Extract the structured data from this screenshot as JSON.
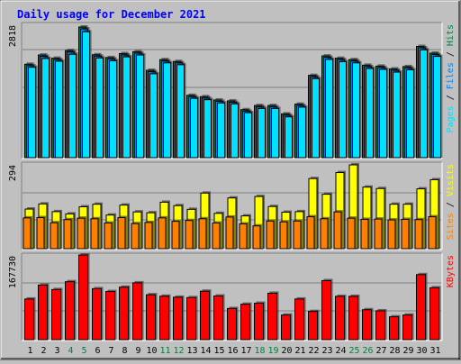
{
  "title": "Daily usage for December 2021",
  "colors": {
    "background": "#c0c0c0",
    "title": "#0000ff",
    "hits": "#008040",
    "files": "#0080ff",
    "pages": "#00e0ff",
    "visits": "#ffff00",
    "sites": "#ff8000",
    "kbytes": "#ff0000",
    "weekend_label": "#008040",
    "weekday_label": "#000000"
  },
  "chart_data": {
    "type": "bar",
    "title": "Daily usage for December 2021",
    "categories": [
      "1",
      "2",
      "3",
      "4",
      "5",
      "6",
      "7",
      "8",
      "9",
      "10",
      "11",
      "12",
      "13",
      "14",
      "15",
      "16",
      "17",
      "18",
      "19",
      "20",
      "21",
      "22",
      "23",
      "24",
      "25",
      "26",
      "27",
      "28",
      "29",
      "30",
      "31"
    ],
    "weekend_days": [
      "4",
      "5",
      "11",
      "12",
      "18",
      "19",
      "25",
      "26"
    ],
    "panels": [
      {
        "name": "pages-files-hits",
        "ymax_label": "2818",
        "ymax": 2818,
        "legend": [
          {
            "text": "Pages",
            "color": "#00e0ff"
          },
          {
            "text": " / ",
            "color": "#000000"
          },
          {
            "text": "Files",
            "color": "#0080ff"
          },
          {
            "text": " / ",
            "color": "#000000"
          },
          {
            "text": "Hits",
            "color": "#008040"
          }
        ],
        "series": [
          {
            "name": "Hits",
            "color": "#008040",
            "values": [
              2015,
              2215,
              2145,
              2310,
              2818,
              2220,
              2160,
              2245,
              2285,
              1885,
              2115,
              2075,
              1345,
              1315,
              1245,
              1225,
              1035,
              1125,
              1125,
              945,
              1155,
              1775,
              2195,
              2145,
              2115,
              1995,
              1975,
              1915,
              1965,
              2400,
              2255
            ]
          },
          {
            "name": "Files",
            "color": "#0080ff",
            "values": [
              1985,
              2185,
              2115,
              2280,
              2778,
              2190,
              2130,
              2215,
              2255,
              1855,
              2085,
              2045,
              1315,
              1285,
              1215,
              1195,
              1005,
              1095,
              1095,
              915,
              1125,
              1745,
              2165,
              2115,
              2085,
              1965,
              1945,
              1885,
              1935,
              2370,
              2225
            ]
          },
          {
            "name": "Pages",
            "color": "#00e0ff",
            "values": [
              1950,
              2140,
              2080,
              2230,
              2715,
              2150,
              2090,
              2175,
              2215,
              1810,
              2045,
              2005,
              1280,
              1250,
              1180,
              1160,
              970,
              1060,
              1060,
              880,
              1090,
              1705,
              2120,
              2070,
              2045,
              1925,
              1905,
              1845,
              1895,
              2325,
              2185
            ]
          }
        ]
      },
      {
        "name": "visits-sites",
        "ymax_label": "294",
        "ymax": 294,
        "legend": [
          {
            "text": "Sites",
            "color": "#ff8000"
          },
          {
            "text": " / ",
            "color": "#000000"
          },
          {
            "text": "Visits",
            "color": "#ffff00"
          }
        ],
        "series": [
          {
            "name": "Visits",
            "color": "#ffff00",
            "values": [
              139,
              157,
              130,
              122,
              147,
              156,
              118,
              153,
              129,
              126,
              163,
              151,
              138,
              195,
              124,
              178,
              115,
              183,
              148,
              128,
              130,
              246,
              191,
              267,
              294,
              216,
              211,
              156,
              156,
              210,
              242
            ]
          },
          {
            "name": "Sites",
            "color": "#ff8000",
            "values": [
              108,
              109,
              91,
              102,
              107,
              105,
              90,
              109,
              88,
              92,
              108,
              96,
              99,
              105,
              90,
              111,
              87,
              80,
              97,
              94,
              97,
              112,
              105,
              129,
              107,
              103,
              104,
              101,
              103,
              102,
              112
            ]
          }
        ]
      },
      {
        "name": "kbytes",
        "ymax_label": "167730",
        "ymax": 167730,
        "legend": [
          {
            "text": "KBytes",
            "color": "#ff0000"
          }
        ],
        "series": [
          {
            "name": "KBytes",
            "color": "#ff0000",
            "values": [
              80500,
              108100,
              99300,
              114800,
              167730,
              101000,
              95400,
              104000,
              112600,
              89000,
              86100,
              84100,
              83300,
              96000,
              86500,
              61700,
              70200,
              72200,
              92000,
              48800,
              80500,
              55900,
              116900,
              85800,
              85800,
              59300,
              57200,
              45300,
              48800,
              128800,
              102800
            ]
          }
        ]
      }
    ]
  }
}
